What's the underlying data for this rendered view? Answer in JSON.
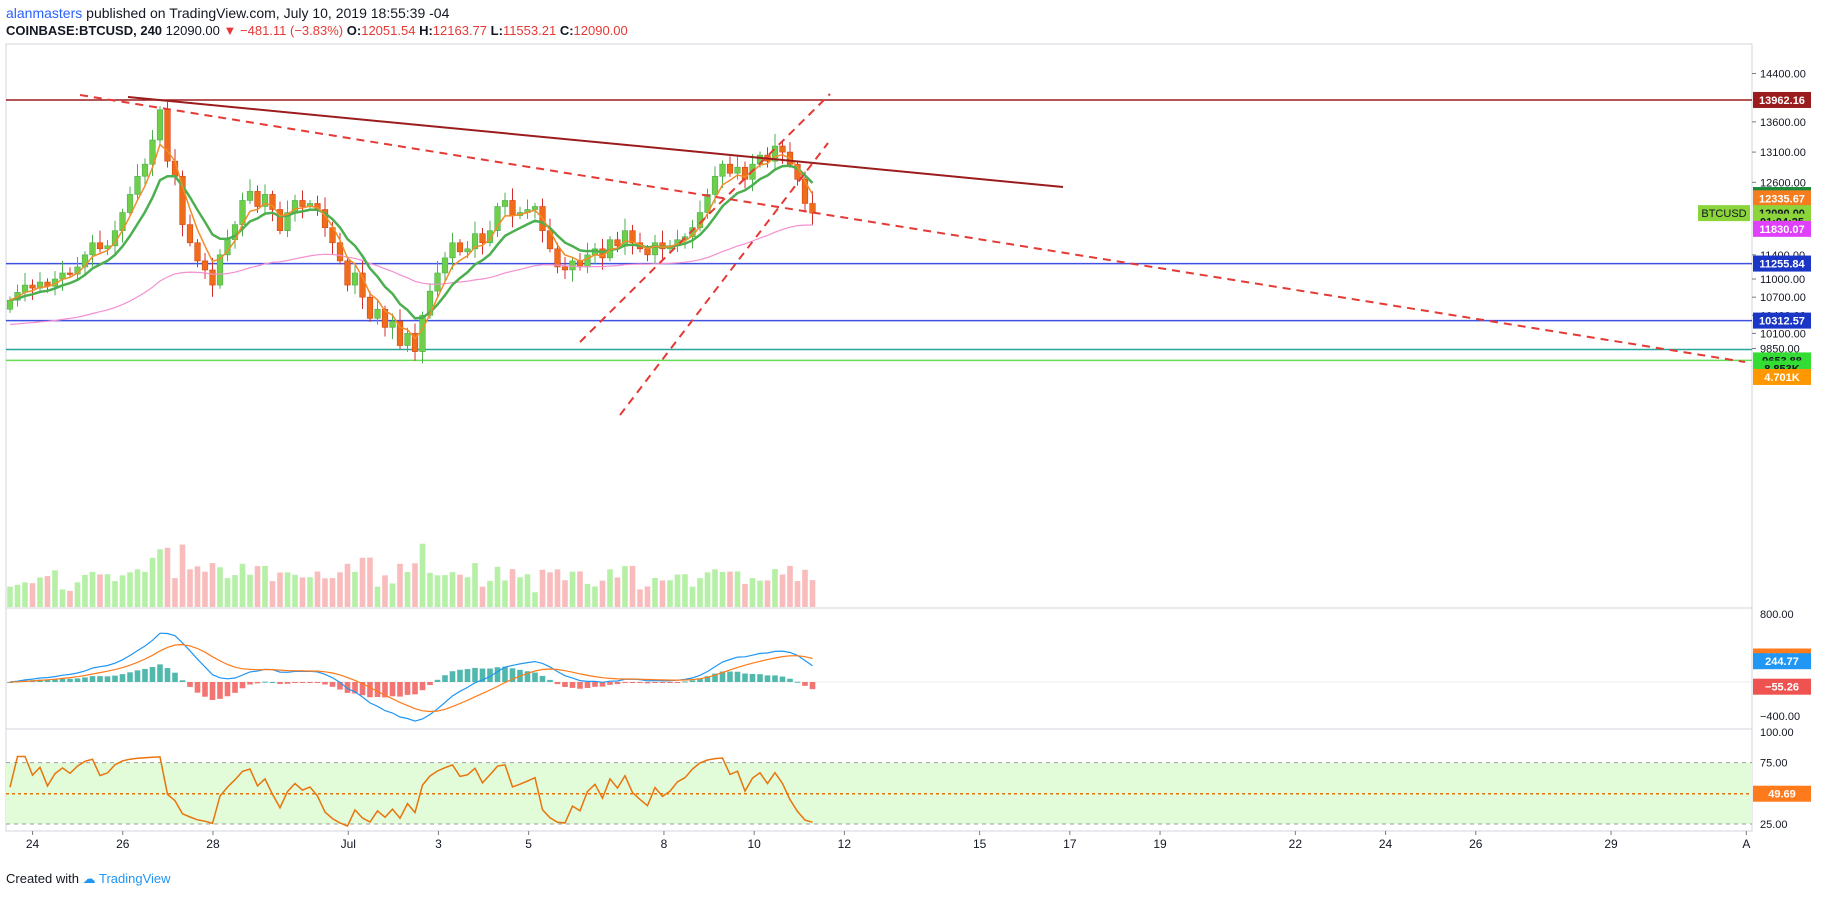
{
  "header": {
    "author": "alanmasters",
    "published": "published on TradingView.com, July 10, 2019 18:55:39 -04"
  },
  "ohlc": {
    "symbol": "COINBASE:BTCUSD, 240",
    "last": "12090.00",
    "change": "−481.11 (−3.83%)",
    "o_label": "O:",
    "o": "12051.54",
    "h_label": "H:",
    "h": "12163.77",
    "l_label": "L:",
    "l": "11553.21",
    "c_label": "C:",
    "c": "12090.00"
  },
  "footer": {
    "created": "Created with",
    "brand": "TradingView"
  },
  "colors": {
    "bull": "#6fcf4a",
    "bear": "#ef6c1a",
    "ema_fast": "#f28c28",
    "ema_slow": "#4caf50",
    "ma_long": "#f48fd0",
    "resistance": "#9b1c1c",
    "trend_dash": "#e53935",
    "support": "#3f51e0",
    "teal_line": "#26a69a",
    "green_line": "#66dd55",
    "macd": "#2196f3",
    "macd_signal": "#ff7a1a",
    "rsi": "#e8740c"
  },
  "chart_data": [
    {
      "type": "line",
      "pane": "price",
      "ylim": [
        9400,
        14400
      ],
      "y_ticks": [
        "14400.00",
        "13600.00",
        "13100.00",
        "12600.00",
        "11400.00",
        "11000.00",
        "10700.00",
        "10400.00",
        "10100.00",
        "9850.00"
      ],
      "x_ticks": [
        "24",
        "26",
        "28",
        "Jul",
        "3",
        "5",
        "8",
        "10",
        "12",
        "15",
        "17",
        "19",
        "22",
        "24",
        "26",
        "29",
        "A"
      ],
      "x_tick_days": [
        24,
        26,
        28,
        31,
        33,
        35,
        38,
        40,
        42,
        45,
        47,
        49,
        52,
        54,
        56,
        59,
        62
      ],
      "candles_start": "Jun 23 2019",
      "candle_interval_hours": 4,
      "candle_closes": [
        10650,
        10780,
        10900,
        10850,
        10950,
        10880,
        11000,
        11100,
        11080,
        11200,
        11400,
        11600,
        11500,
        11550,
        11800,
        12100,
        12400,
        12700,
        12900,
        13300,
        13800,
        12950,
        12700,
        11900,
        11600,
        11300,
        11150,
        10900,
        11400,
        11650,
        11900,
        12300,
        12450,
        12200,
        12400,
        12150,
        11800,
        12100,
        12300,
        12200,
        12250,
        12150,
        11850,
        11600,
        11300,
        10900,
        11100,
        10700,
        10350,
        10500,
        10200,
        10300,
        9900,
        10100,
        9800,
        10400,
        10800,
        11100,
        11350,
        11600,
        11450,
        11500,
        11750,
        11600,
        11800,
        12200,
        12300,
        12050,
        12100,
        12150,
        12200,
        11800,
        11500,
        11200,
        11150,
        11300,
        11200,
        11400,
        11500,
        11350,
        11650,
        11550,
        11800,
        11600,
        11500,
        11400,
        11600,
        11500,
        11550,
        11650,
        11700,
        11850,
        12100,
        12400,
        12700,
        12900,
        12750,
        12850,
        12650,
        12900,
        13050,
        12950,
        13200,
        13100,
        12900,
        12650,
        12250,
        12090
      ],
      "markers": [
        {
          "label": "13962.16",
          "price": 13962.16,
          "bg": "#9b1c1c",
          "fg": "#ffffff"
        },
        {
          "label": "12389.55",
          "price": 12389.55,
          "bg": "#1b8a3a",
          "fg": "#ffffff"
        },
        {
          "label": "12335.67",
          "price": 12335.67,
          "bg": "#f57c1f",
          "fg": "#ffffff"
        },
        {
          "label": "12090.00",
          "price": 12090.0,
          "bg": "#8bd43a",
          "fg": "#131722"
        },
        {
          "label": "01:04:25",
          "price": 11950,
          "bg": "#8bd43a",
          "fg": "#131722"
        },
        {
          "label": "11830.07",
          "price": 11830.07,
          "bg": "#e040fb",
          "fg": "#ffffff"
        },
        {
          "label": "11255.84",
          "price": 11255.84,
          "bg": "#1a36c6",
          "fg": "#ffffff"
        },
        {
          "label": "10312.57",
          "price": 10312.57,
          "bg": "#1a36c6",
          "fg": "#ffffff"
        },
        {
          "label": "9653.88",
          "price": 9653.88,
          "bg": "#33dd33",
          "fg": "#131722"
        },
        {
          "label": "8.853K",
          "price": 9520,
          "bg": "#33dd33",
          "fg": "#131722"
        },
        {
          "label": "4.701K",
          "price": 9380,
          "bg": "#ff9800",
          "fg": "#ffffff"
        }
      ],
      "symbol_tag": "BTCUSD"
    },
    {
      "type": "bar",
      "pane": "macd",
      "y_ticks": [
        "800.00",
        "−400.00"
      ],
      "ylim": [
        -500,
        850
      ],
      "markers": [
        {
          "label": "300.03",
          "value": 300.03,
          "bg": "#ff7a1a",
          "fg": "#ffffff"
        },
        {
          "label": "244.77",
          "value": 244.77,
          "bg": "#2196f3",
          "fg": "#ffffff"
        },
        {
          "label": "−55.26",
          "value": -55.26,
          "bg": "#ef5350",
          "fg": "#ffffff"
        }
      ]
    },
    {
      "type": "line",
      "pane": "rsi",
      "y_ticks": [
        "100.00",
        "75.00",
        "25.00"
      ],
      "ylim": [
        20,
        100
      ],
      "markers": [
        {
          "label": "49.69",
          "value": 49.69,
          "bg": "#ff7a1a",
          "fg": "#ffffff"
        }
      ]
    }
  ]
}
